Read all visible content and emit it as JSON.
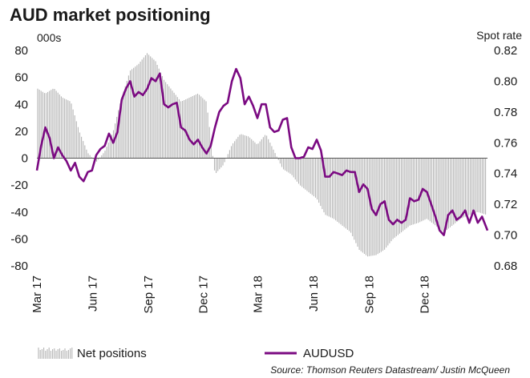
{
  "chart_data": {
    "type": "bar+line",
    "title": "AUD market positioning",
    "left_unit": "000s",
    "right_unit": "Spot rate",
    "left_axis": {
      "min": -80,
      "max": 80,
      "ticks": [
        80,
        60,
        40,
        20,
        0,
        -20,
        -40,
        -60,
        -80
      ]
    },
    "right_axis": {
      "min": 0.68,
      "max": 0.82,
      "ticks": [
        "0.82",
        "0.80",
        "0.78",
        "0.76",
        "0.74",
        "0.72",
        "0.70",
        "0.68"
      ]
    },
    "x_axis": {
      "start": "2017-03-01",
      "end": "2019-03-15",
      "ticks": [
        {
          "label": "Mar 17",
          "date": "2017-03-01"
        },
        {
          "label": "Jun 17",
          "date": "2017-06-01"
        },
        {
          "label": "Sep 17",
          "date": "2017-09-01"
        },
        {
          "label": "Dec 17",
          "date": "2017-12-01"
        },
        {
          "label": "Mar 18",
          "date": "2018-03-01"
        },
        {
          "label": "Jun 18",
          "date": "2018-06-01"
        },
        {
          "label": "Sep 18",
          "date": "2018-09-01"
        },
        {
          "label": "Dec 18",
          "date": "2018-12-01"
        }
      ]
    },
    "series": [
      {
        "name": "Net positions",
        "kind": "bar",
        "color": "#b4b4b4",
        "points": [
          [
            "2017-03-01",
            52
          ],
          [
            "2017-03-15",
            48
          ],
          [
            "2017-03-29",
            52
          ],
          [
            "2017-04-12",
            45
          ],
          [
            "2017-04-26",
            42
          ],
          [
            "2017-05-10",
            20
          ],
          [
            "2017-05-24",
            4
          ],
          [
            "2017-06-07",
            -3
          ],
          [
            "2017-06-21",
            5
          ],
          [
            "2017-07-05",
            20
          ],
          [
            "2017-07-19",
            45
          ],
          [
            "2017-08-02",
            65
          ],
          [
            "2017-08-16",
            70
          ],
          [
            "2017-08-30",
            78
          ],
          [
            "2017-09-13",
            72
          ],
          [
            "2017-09-27",
            58
          ],
          [
            "2017-10-11",
            50
          ],
          [
            "2017-10-25",
            42
          ],
          [
            "2017-11-08",
            45
          ],
          [
            "2017-11-22",
            48
          ],
          [
            "2017-12-06",
            42
          ],
          [
            "2017-12-20",
            -12
          ],
          [
            "2018-01-03",
            -5
          ],
          [
            "2018-01-17",
            10
          ],
          [
            "2018-01-31",
            18
          ],
          [
            "2018-02-14",
            16
          ],
          [
            "2018-02-28",
            10
          ],
          [
            "2018-03-14",
            18
          ],
          [
            "2018-03-28",
            5
          ],
          [
            "2018-04-11",
            -8
          ],
          [
            "2018-04-25",
            -12
          ],
          [
            "2018-05-09",
            -20
          ],
          [
            "2018-05-23",
            -25
          ],
          [
            "2018-06-06",
            -30
          ],
          [
            "2018-06-20",
            -42
          ],
          [
            "2018-07-04",
            -45
          ],
          [
            "2018-07-18",
            -50
          ],
          [
            "2018-08-01",
            -55
          ],
          [
            "2018-08-15",
            -68
          ],
          [
            "2018-08-29",
            -73
          ],
          [
            "2018-09-12",
            -72
          ],
          [
            "2018-09-26",
            -68
          ],
          [
            "2018-10-10",
            -60
          ],
          [
            "2018-10-24",
            -55
          ],
          [
            "2018-11-07",
            -50
          ],
          [
            "2018-11-21",
            -48
          ],
          [
            "2018-12-05",
            -45
          ],
          [
            "2018-12-19",
            -50
          ],
          [
            "2019-01-02",
            -55
          ],
          [
            "2019-01-16",
            -50
          ],
          [
            "2019-01-30",
            -45
          ],
          [
            "2019-02-13",
            -42
          ],
          [
            "2019-02-27",
            -40
          ],
          [
            "2019-03-13",
            -42
          ]
        ]
      },
      {
        "name": "AUDUSD",
        "kind": "line",
        "axis": "right",
        "color": "#7b0a82",
        "points": [
          [
            "2017-03-01",
            0.742
          ],
          [
            "2017-03-08",
            0.758
          ],
          [
            "2017-03-15",
            0.77
          ],
          [
            "2017-03-22",
            0.763
          ],
          [
            "2017-03-29",
            0.75
          ],
          [
            "2017-04-05",
            0.757
          ],
          [
            "2017-04-12",
            0.752
          ],
          [
            "2017-04-19",
            0.748
          ],
          [
            "2017-04-26",
            0.742
          ],
          [
            "2017-05-03",
            0.747
          ],
          [
            "2017-05-10",
            0.738
          ],
          [
            "2017-05-17",
            0.735
          ],
          [
            "2017-05-24",
            0.741
          ],
          [
            "2017-05-31",
            0.742
          ],
          [
            "2017-06-07",
            0.752
          ],
          [
            "2017-06-14",
            0.756
          ],
          [
            "2017-06-21",
            0.758
          ],
          [
            "2017-06-28",
            0.766
          ],
          [
            "2017-07-05",
            0.76
          ],
          [
            "2017-07-12",
            0.767
          ],
          [
            "2017-07-19",
            0.788
          ],
          [
            "2017-07-26",
            0.795
          ],
          [
            "2017-08-02",
            0.8
          ],
          [
            "2017-08-09",
            0.79
          ],
          [
            "2017-08-16",
            0.793
          ],
          [
            "2017-08-23",
            0.791
          ],
          [
            "2017-08-30",
            0.795
          ],
          [
            "2017-09-06",
            0.802
          ],
          [
            "2017-09-13",
            0.8
          ],
          [
            "2017-09-20",
            0.805
          ],
          [
            "2017-09-27",
            0.785
          ],
          [
            "2017-10-04",
            0.783
          ],
          [
            "2017-10-11",
            0.785
          ],
          [
            "2017-10-18",
            0.786
          ],
          [
            "2017-10-25",
            0.77
          ],
          [
            "2017-11-01",
            0.768
          ],
          [
            "2017-11-08",
            0.762
          ],
          [
            "2017-11-15",
            0.759
          ],
          [
            "2017-11-22",
            0.762
          ],
          [
            "2017-11-29",
            0.757
          ],
          [
            "2017-12-06",
            0.753
          ],
          [
            "2017-12-13",
            0.758
          ],
          [
            "2017-12-20",
            0.77
          ],
          [
            "2017-12-27",
            0.78
          ],
          [
            "2018-01-03",
            0.784
          ],
          [
            "2018-01-10",
            0.786
          ],
          [
            "2018-01-17",
            0.8
          ],
          [
            "2018-01-24",
            0.808
          ],
          [
            "2018-01-31",
            0.802
          ],
          [
            "2018-02-07",
            0.785
          ],
          [
            "2018-02-14",
            0.79
          ],
          [
            "2018-02-21",
            0.784
          ],
          [
            "2018-02-28",
            0.776
          ],
          [
            "2018-03-07",
            0.785
          ],
          [
            "2018-03-14",
            0.785
          ],
          [
            "2018-03-21",
            0.77
          ],
          [
            "2018-03-28",
            0.767
          ],
          [
            "2018-04-04",
            0.768
          ],
          [
            "2018-04-11",
            0.775
          ],
          [
            "2018-04-18",
            0.776
          ],
          [
            "2018-04-25",
            0.757
          ],
          [
            "2018-05-02",
            0.75
          ],
          [
            "2018-05-09",
            0.75
          ],
          [
            "2018-05-16",
            0.751
          ],
          [
            "2018-05-23",
            0.757
          ],
          [
            "2018-05-30",
            0.756
          ],
          [
            "2018-06-06",
            0.762
          ],
          [
            "2018-06-13",
            0.755
          ],
          [
            "2018-06-20",
            0.738
          ],
          [
            "2018-06-27",
            0.738
          ],
          [
            "2018-07-04",
            0.741
          ],
          [
            "2018-07-11",
            0.74
          ],
          [
            "2018-07-18",
            0.739
          ],
          [
            "2018-07-25",
            0.742
          ],
          [
            "2018-08-01",
            0.741
          ],
          [
            "2018-08-08",
            0.741
          ],
          [
            "2018-08-15",
            0.728
          ],
          [
            "2018-08-22",
            0.733
          ],
          [
            "2018-08-29",
            0.73
          ],
          [
            "2018-09-05",
            0.717
          ],
          [
            "2018-09-12",
            0.713
          ],
          [
            "2018-09-19",
            0.72
          ],
          [
            "2018-09-26",
            0.722
          ],
          [
            "2018-10-03",
            0.71
          ],
          [
            "2018-10-10",
            0.707
          ],
          [
            "2018-10-17",
            0.71
          ],
          [
            "2018-10-24",
            0.708
          ],
          [
            "2018-10-31",
            0.71
          ],
          [
            "2018-11-07",
            0.724
          ],
          [
            "2018-11-14",
            0.722
          ],
          [
            "2018-11-21",
            0.723
          ],
          [
            "2018-11-28",
            0.73
          ],
          [
            "2018-12-05",
            0.728
          ],
          [
            "2018-12-12",
            0.72
          ],
          [
            "2018-12-19",
            0.712
          ],
          [
            "2018-12-26",
            0.703
          ],
          [
            "2019-01-02",
            0.7
          ],
          [
            "2019-01-09",
            0.713
          ],
          [
            "2019-01-16",
            0.716
          ],
          [
            "2019-01-23",
            0.71
          ],
          [
            "2019-01-30",
            0.712
          ],
          [
            "2019-02-06",
            0.716
          ],
          [
            "2019-02-13",
            0.708
          ],
          [
            "2019-02-20",
            0.716
          ],
          [
            "2019-02-27",
            0.708
          ],
          [
            "2019-03-06",
            0.712
          ],
          [
            "2019-03-13",
            0.705
          ],
          [
            "2019-03-15",
            0.703
          ]
        ]
      }
    ],
    "legend": [
      {
        "label": "Net positions",
        "kind": "bar",
        "color": "#b4b4b4"
      },
      {
        "label": "AUDUSD",
        "kind": "line",
        "color": "#7b0a82"
      }
    ],
    "legend_position": "bottom",
    "grid": false,
    "source": "Source: Thomson Reuters Datastream/ Justin McQueen"
  }
}
